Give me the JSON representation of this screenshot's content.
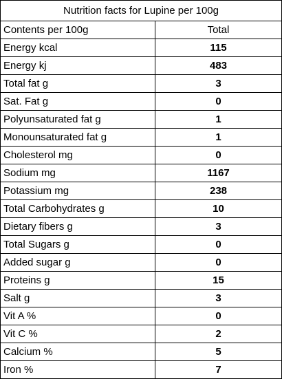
{
  "table": {
    "title": "Nutrition facts for Lupine per 100g",
    "header": [
      "Contents per 100g",
      "Total"
    ],
    "rows": [
      [
        "Energy kcal",
        115
      ],
      [
        "Energy kj",
        483
      ],
      [
        "Total fat g",
        3
      ],
      [
        "Sat. Fat g",
        0
      ],
      [
        "Polyunsaturated fat g",
        1
      ],
      [
        "Monounsaturated fat g",
        1
      ],
      [
        "Cholesterol mg",
        0
      ],
      [
        "Sodium mg",
        1167
      ],
      [
        "Potassium mg",
        238
      ],
      [
        "Total Carbohydrates g",
        10
      ],
      [
        "Dietary fibers g",
        3
      ],
      [
        "Total Sugars g",
        0
      ],
      [
        "Added sugar g",
        0
      ],
      [
        "Proteins g",
        15
      ],
      [
        "Salt g",
        3
      ],
      [
        "Vit A %",
        0
      ],
      [
        "Vit C %",
        2
      ],
      [
        "Calcium %",
        5
      ],
      [
        "Iron %",
        7
      ]
    ]
  }
}
